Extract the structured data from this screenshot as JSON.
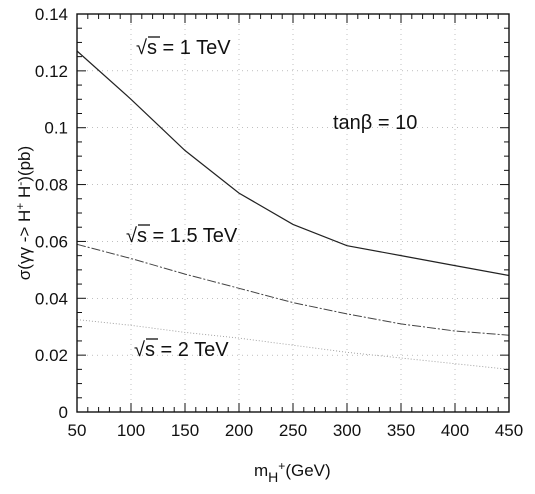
{
  "chart_data": {
    "type": "line",
    "xlabel": "m_H⁺ (GeV)",
    "xlabel_main": "m",
    "xlabel_sub": "H",
    "xlabel_sup": "+",
    "xlabel_unit": "(GeV)",
    "ylabel": "σ(γγ -> H⁺ H⁻)(pb)",
    "ylabel_prefix": "σ(γγ -> H",
    "ylabel_sup1": "+",
    "ylabel_mid": " H",
    "ylabel_sup2": "-",
    "ylabel_suffix": ")(pb)",
    "xlim": [
      50,
      450
    ],
    "ylim": [
      0,
      0.14
    ],
    "xticks": [
      "50",
      "100",
      "150",
      "200",
      "250",
      "300",
      "350",
      "400",
      "450"
    ],
    "yticks": [
      "0",
      "0.02",
      "0.04",
      "0.06",
      "0.08",
      "0.1",
      "0.12",
      "0.14"
    ],
    "grid": true,
    "annotations": {
      "tanb": "tanβ = 10",
      "s1": "s = 1 TeV",
      "s15": "s = 1.5 TeV",
      "s2": "s = 2 TeV"
    },
    "series": [
      {
        "x": [
          50,
          100,
          150,
          200,
          250,
          300,
          350,
          400,
          450
        ],
        "y": [
          0.127,
          0.11,
          0.092,
          0.077,
          0.066,
          0.0585,
          0.055,
          0.0515,
          0.048
        ],
        "color": "#222222"
      },
      {
        "x": [
          50,
          100,
          150,
          200,
          250,
          300,
          350,
          400,
          450
        ],
        "y": [
          0.059,
          0.054,
          0.0485,
          0.0435,
          0.0385,
          0.0345,
          0.031,
          0.0285,
          0.027
        ],
        "color": "#444444"
      },
      {
        "x": [
          50,
          100,
          150,
          200,
          250,
          300,
          350,
          400,
          450
        ],
        "y": [
          0.0325,
          0.0305,
          0.028,
          0.026,
          0.0235,
          0.021,
          0.019,
          0.017,
          0.015
        ],
        "color": "#9a9a9a"
      }
    ]
  }
}
